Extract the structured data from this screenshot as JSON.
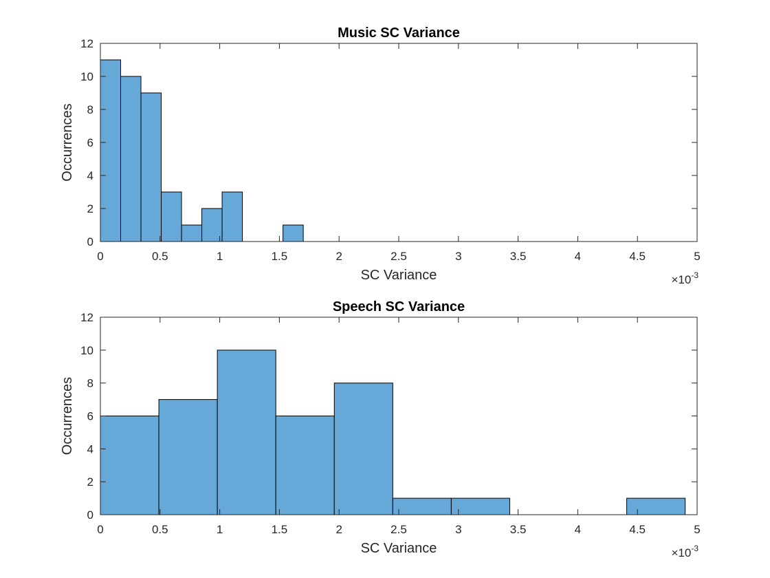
{
  "chart_data": [
    {
      "type": "bar",
      "title": "Music SC Variance",
      "xlabel": "SC Variance",
      "ylabel": "Occurrences",
      "x_exponent_label": "×10",
      "x_exponent_power": "-3",
      "xlim": [
        0,
        5
      ],
      "ylim": [
        0,
        12
      ],
      "xticks": [
        0,
        0.5,
        1,
        1.5,
        2,
        2.5,
        3,
        3.5,
        4,
        4.5,
        5
      ],
      "xtick_labels": [
        "0",
        "0.5",
        "1",
        "1.5",
        "2",
        "2.5",
        "3",
        "3.5",
        "4",
        "4.5",
        "5"
      ],
      "yticks": [
        0,
        2,
        4,
        6,
        8,
        10,
        12
      ],
      "ytick_labels": [
        "0",
        "2",
        "4",
        "6",
        "8",
        "10",
        "12"
      ],
      "bin_width": 0.17,
      "bins": [
        {
          "x0": 0.0,
          "x1": 0.17,
          "value": 11
        },
        {
          "x0": 0.17,
          "x1": 0.34,
          "value": 10
        },
        {
          "x0": 0.34,
          "x1": 0.51,
          "value": 9
        },
        {
          "x0": 0.51,
          "x1": 0.68,
          "value": 3
        },
        {
          "x0": 0.68,
          "x1": 0.85,
          "value": 1
        },
        {
          "x0": 0.85,
          "x1": 1.02,
          "value": 2
        },
        {
          "x0": 1.02,
          "x1": 1.19,
          "value": 3
        },
        {
          "x0": 1.19,
          "x1": 1.36,
          "value": 0
        },
        {
          "x0": 1.36,
          "x1": 1.53,
          "value": 0
        },
        {
          "x0": 1.53,
          "x1": 1.7,
          "value": 1
        }
      ],
      "bar_color": "#66A8D8",
      "edge_color": "#000000",
      "grid": false
    },
    {
      "type": "bar",
      "title": "Speech SC Variance",
      "xlabel": "SC Variance",
      "ylabel": "Occurrences",
      "x_exponent_label": "×10",
      "x_exponent_power": "-3",
      "xlim": [
        0,
        5
      ],
      "ylim": [
        0,
        12
      ],
      "xticks": [
        0,
        0.5,
        1,
        1.5,
        2,
        2.5,
        3,
        3.5,
        4,
        4.5,
        5
      ],
      "xtick_labels": [
        "0",
        "0.5",
        "1",
        "1.5",
        "2",
        "2.5",
        "3",
        "3.5",
        "4",
        "4.5",
        "5"
      ],
      "yticks": [
        0,
        2,
        4,
        6,
        8,
        10,
        12
      ],
      "ytick_labels": [
        "0",
        "2",
        "4",
        "6",
        "8",
        "10",
        "12"
      ],
      "bin_width": 0.49,
      "bins": [
        {
          "x0": 0.0,
          "x1": 0.49,
          "value": 6
        },
        {
          "x0": 0.49,
          "x1": 0.98,
          "value": 7
        },
        {
          "x0": 0.98,
          "x1": 1.47,
          "value": 10
        },
        {
          "x0": 1.47,
          "x1": 1.96,
          "value": 6
        },
        {
          "x0": 1.96,
          "x1": 2.45,
          "value": 8
        },
        {
          "x0": 2.45,
          "x1": 2.94,
          "value": 1
        },
        {
          "x0": 2.94,
          "x1": 3.43,
          "value": 1
        },
        {
          "x0": 3.43,
          "x1": 3.92,
          "value": 0
        },
        {
          "x0": 3.92,
          "x1": 4.41,
          "value": 0
        },
        {
          "x0": 4.41,
          "x1": 4.9,
          "value": 1
        }
      ],
      "bar_color": "#66A8D8",
      "edge_color": "#000000",
      "grid": false
    }
  ]
}
